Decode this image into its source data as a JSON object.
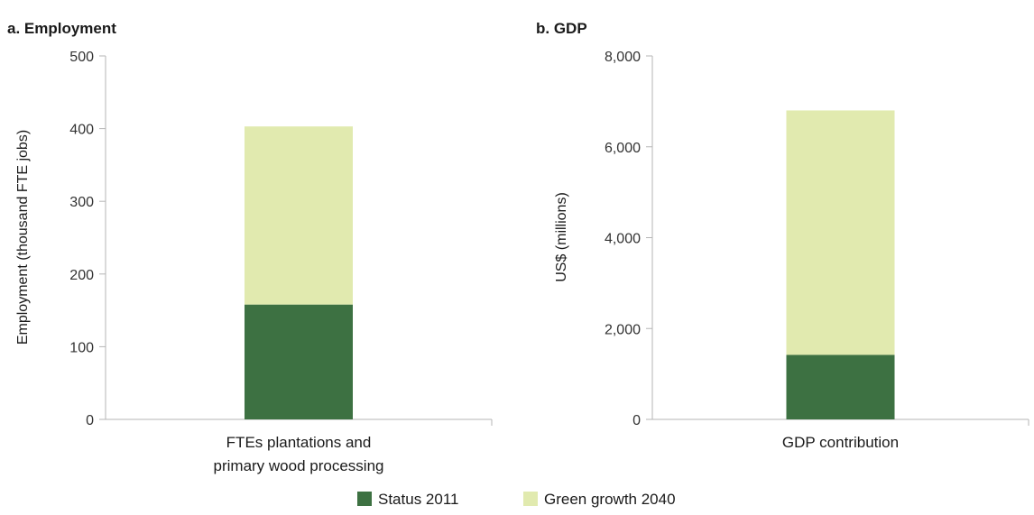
{
  "chart_data": [
    {
      "type": "bar",
      "stacked": true,
      "title": "a. Employment",
      "ylabel": "Employment (thousand FTE jobs)",
      "xlabel": "",
      "ylim": [
        0,
        500
      ],
      "yticks": [
        "0",
        "100",
        "200",
        "300",
        "400",
        "500"
      ],
      "categories": [
        [
          "FTEs plantations and",
          "primary wood processing"
        ]
      ],
      "series": [
        {
          "name": "Status 2011",
          "color": "#3d7142",
          "values": [
            158
          ]
        },
        {
          "name": "Green growth 2040",
          "color": "#e1eaaf",
          "values": [
            245
          ]
        }
      ]
    },
    {
      "type": "bar",
      "stacked": true,
      "title": "b. GDP",
      "ylabel": "US$ (millions)",
      "xlabel": "",
      "ylim": [
        0,
        8000
      ],
      "yticks": [
        "0",
        "2,000",
        "4,000",
        "6,000",
        "8,000"
      ],
      "categories": [
        [
          "GDP contribution"
        ]
      ],
      "series": [
        {
          "name": "Status 2011",
          "color": "#3d7142",
          "values": [
            1420
          ]
        },
        {
          "name": "Green growth 2040",
          "color": "#e1eaaf",
          "values": [
            5380
          ]
        }
      ]
    }
  ],
  "legend": {
    "position": "bottom",
    "items": [
      {
        "label": "Status 2011",
        "color": "#3d7142"
      },
      {
        "label": "Green growth 2040",
        "color": "#e1eaaf"
      }
    ]
  }
}
